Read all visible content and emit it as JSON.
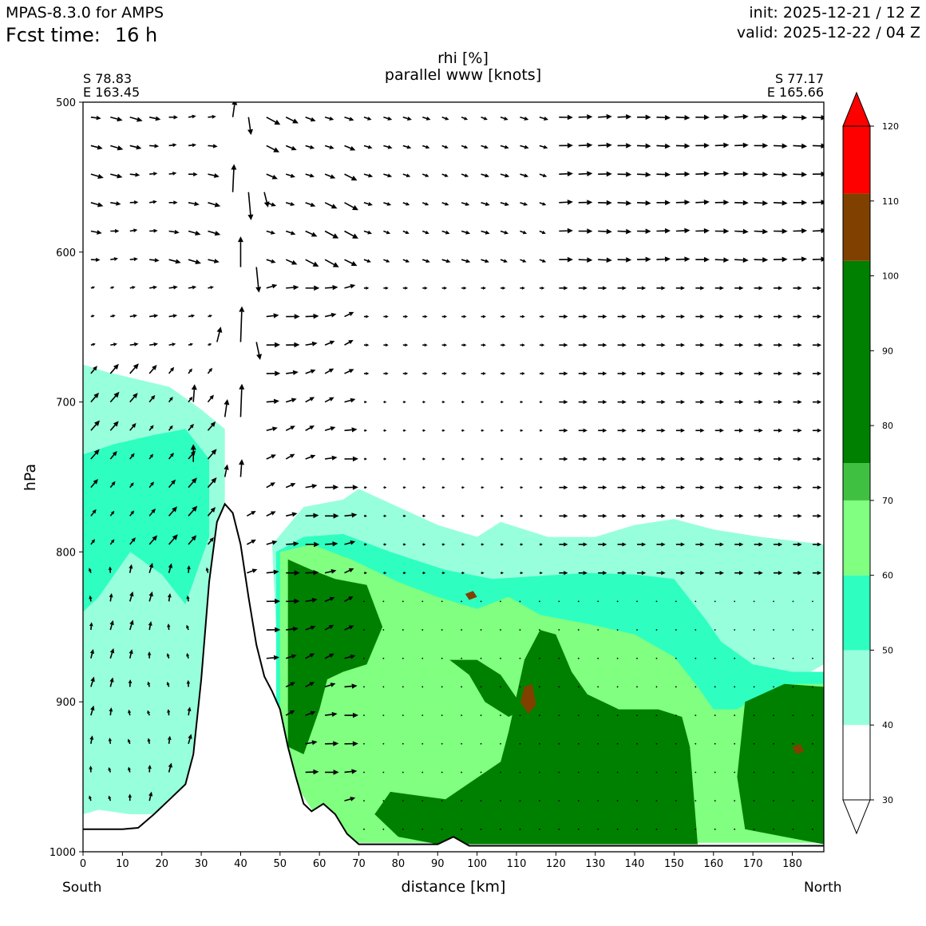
{
  "header": {
    "model": "MPAS-8.3.0 for AMPS",
    "fcst_label": "Fcst time:",
    "fcst_value": "16 h",
    "init": "init: 2025-12-21 / 12 Z",
    "valid": "valid: 2025-12-22 / 04 Z"
  },
  "section": {
    "start_lat": "S 78.83",
    "start_lon": "E 163.45",
    "end_lat": "S 77.17",
    "end_lon": "E 165.66",
    "south": "South",
    "north": "North"
  },
  "chart_data": {
    "type": "contourf cross-section with wind vectors",
    "title": "rhi [%]",
    "subtitle": "parallel www [knots]",
    "xlabel": "distance [km]",
    "ylabel": "hPa",
    "xlim": [
      0,
      188
    ],
    "ylim": [
      1000,
      500
    ],
    "xticks": [
      0,
      10,
      20,
      30,
      40,
      50,
      60,
      70,
      80,
      90,
      100,
      110,
      120,
      130,
      140,
      150,
      160,
      170,
      180
    ],
    "yticks": [
      500,
      600,
      700,
      800,
      900,
      1000
    ],
    "colorbar": {
      "ticks": [
        30,
        40,
        50,
        60,
        70,
        80,
        90,
        100,
        110,
        120
      ],
      "bins": [
        {
          "from": 30,
          "to": 40,
          "color": "#ffffff"
        },
        {
          "from": 40,
          "to": 50,
          "color": "#98ffdc"
        },
        {
          "from": 50,
          "to": 60,
          "color": "#2effc0"
        },
        {
          "from": 60,
          "to": 70,
          "color": "#80ff80"
        },
        {
          "from": 70,
          "to": 75,
          "color": "#40c040"
        },
        {
          "from": 75,
          "to": 102,
          "color": "#008000"
        },
        {
          "from": 102,
          "to": 111,
          "color": "#804000"
        },
        {
          "from": 111,
          "to": 120,
          "color": "#ff0000"
        }
      ]
    },
    "terrain": [
      [
        0,
        985
      ],
      [
        10,
        985
      ],
      [
        14,
        984
      ],
      [
        18,
        975
      ],
      [
        22,
        965
      ],
      [
        26,
        955
      ],
      [
        28,
        935
      ],
      [
        30,
        885
      ],
      [
        32,
        820
      ],
      [
        34,
        780
      ],
      [
        36,
        768
      ],
      [
        38,
        774
      ],
      [
        40,
        795
      ],
      [
        42,
        830
      ],
      [
        44,
        862
      ],
      [
        46,
        883
      ],
      [
        48,
        893
      ],
      [
        50,
        905
      ],
      [
        52,
        930
      ],
      [
        54,
        950
      ],
      [
        56,
        968
      ],
      [
        58,
        973
      ],
      [
        61,
        968
      ],
      [
        64,
        975
      ],
      [
        67,
        988
      ],
      [
        70,
        995
      ],
      [
        90,
        995
      ],
      [
        94,
        990
      ],
      [
        98,
        996
      ],
      [
        188,
        996
      ]
    ],
    "rhi_regions": [
      {
        "level": 40,
        "points": [
          [
            0,
            675
          ],
          [
            6,
            680
          ],
          [
            14,
            685
          ],
          [
            22,
            690
          ],
          [
            30,
            705
          ],
          [
            36,
            718
          ],
          [
            36,
            780
          ],
          [
            30,
            900
          ],
          [
            26,
            960
          ],
          [
            20,
            975
          ],
          [
            12,
            975
          ],
          [
            4,
            972
          ],
          [
            0,
            975
          ]
        ]
      },
      {
        "level": 40,
        "points": [
          [
            48,
            795
          ],
          [
            56,
            770
          ],
          [
            66,
            765
          ],
          [
            70,
            758
          ],
          [
            80,
            770
          ],
          [
            90,
            782
          ],
          [
            100,
            790
          ],
          [
            106,
            780
          ],
          [
            118,
            790
          ],
          [
            130,
            790
          ],
          [
            140,
            782
          ],
          [
            150,
            778
          ],
          [
            160,
            785
          ],
          [
            172,
            790
          ],
          [
            188,
            795
          ],
          [
            188,
            875
          ],
          [
            178,
            890
          ],
          [
            172,
            910
          ],
          [
            166,
            945
          ],
          [
            160,
            960
          ],
          [
            150,
            955
          ],
          [
            120,
            930
          ],
          [
            100,
            915
          ],
          [
            80,
            920
          ],
          [
            70,
            940
          ],
          [
            60,
            955
          ],
          [
            54,
            930
          ],
          [
            50,
            905
          ]
        ]
      },
      {
        "level": 50,
        "points": [
          [
            0,
            735
          ],
          [
            8,
            728
          ],
          [
            18,
            722
          ],
          [
            26,
            718
          ],
          [
            32,
            738
          ],
          [
            32,
            790
          ],
          [
            26,
            835
          ],
          [
            20,
            815
          ],
          [
            12,
            800
          ],
          [
            4,
            830
          ],
          [
            0,
            840
          ]
        ]
      },
      {
        "level": 50,
        "points": [
          [
            49,
            800
          ],
          [
            56,
            790
          ],
          [
            66,
            788
          ],
          [
            78,
            800
          ],
          [
            92,
            812
          ],
          [
            104,
            818
          ],
          [
            116,
            816
          ],
          [
            128,
            814
          ],
          [
            140,
            815
          ],
          [
            150,
            818
          ],
          [
            158,
            845
          ],
          [
            162,
            860
          ],
          [
            170,
            875
          ],
          [
            180,
            880
          ],
          [
            188,
            880
          ],
          [
            188,
            990
          ],
          [
            130,
            994
          ],
          [
            90,
            990
          ],
          [
            70,
            990
          ],
          [
            58,
            970
          ],
          [
            52,
            935
          ],
          [
            49,
            905
          ]
        ]
      },
      {
        "level": 60,
        "points": [
          [
            50,
            800
          ],
          [
            58,
            795
          ],
          [
            68,
            805
          ],
          [
            80,
            820
          ],
          [
            90,
            830
          ],
          [
            100,
            838
          ],
          [
            108,
            830
          ],
          [
            116,
            842
          ],
          [
            128,
            848
          ],
          [
            140,
            855
          ],
          [
            150,
            870
          ],
          [
            156,
            890
          ],
          [
            160,
            905
          ],
          [
            166,
            905
          ],
          [
            172,
            895
          ],
          [
            180,
            888
          ],
          [
            188,
            888
          ],
          [
            188,
            994
          ],
          [
            140,
            994
          ],
          [
            100,
            994
          ],
          [
            70,
            994
          ],
          [
            60,
            980
          ],
          [
            54,
            955
          ],
          [
            50,
            905
          ]
        ]
      },
      {
        "level": 80,
        "points": [
          [
            52,
            805
          ],
          [
            58,
            812
          ],
          [
            64,
            818
          ],
          [
            72,
            822
          ],
          [
            76,
            850
          ],
          [
            72,
            875
          ],
          [
            66,
            880
          ],
          [
            62,
            885
          ],
          [
            60,
            905
          ],
          [
            56,
            935
          ],
          [
            52,
            930
          ]
        ]
      },
      {
        "level": 80,
        "points": [
          [
            112,
            872
          ],
          [
            116,
            852
          ],
          [
            120,
            855
          ],
          [
            124,
            880
          ],
          [
            128,
            895
          ],
          [
            136,
            905
          ],
          [
            146,
            905
          ],
          [
            152,
            910
          ],
          [
            154,
            930
          ],
          [
            156,
            995
          ],
          [
            120,
            995
          ],
          [
            100,
            995
          ],
          [
            90,
            995
          ],
          [
            80,
            990
          ],
          [
            74,
            975
          ],
          [
            78,
            960
          ],
          [
            92,
            965
          ],
          [
            106,
            940
          ],
          [
            108,
            920
          ]
        ]
      },
      {
        "level": 80,
        "points": [
          [
            93,
            872
          ],
          [
            98,
            882
          ],
          [
            102,
            900
          ],
          [
            108,
            910
          ],
          [
            112,
            905
          ],
          [
            106,
            882
          ],
          [
            100,
            872
          ]
        ]
      },
      {
        "level": 80,
        "points": [
          [
            168,
            900
          ],
          [
            178,
            888
          ],
          [
            188,
            890
          ],
          [
            188,
            995
          ],
          [
            178,
            990
          ],
          [
            168,
            985
          ],
          [
            166,
            950
          ]
        ]
      },
      {
        "level": 105,
        "points": [
          [
            112,
            890
          ],
          [
            114,
            888
          ],
          [
            115,
            902
          ],
          [
            113,
            908
          ],
          [
            111,
            900
          ]
        ]
      },
      {
        "level": 105,
        "points": [
          [
            180,
            930
          ],
          [
            182,
            928
          ],
          [
            183,
            933
          ],
          [
            181,
            935
          ]
        ]
      },
      {
        "level": 105,
        "points": [
          [
            97,
            828
          ],
          [
            99,
            826
          ],
          [
            100,
            830
          ],
          [
            98,
            832
          ]
        ]
      }
    ],
    "jet_vectors": [
      {
        "x": 38,
        "p": 510,
        "u": 2,
        "w": -14
      },
      {
        "x": 42,
        "p": 510,
        "u": 2,
        "w": 14
      },
      {
        "x": 38,
        "p": 560,
        "u": 1,
        "w": -22
      },
      {
        "x": 42,
        "p": 560,
        "u": 2,
        "w": 22
      },
      {
        "x": 46,
        "p": 560,
        "u": 3,
        "w": 12
      },
      {
        "x": 40,
        "p": 610,
        "u": 0,
        "w": -24
      },
      {
        "x": 44,
        "p": 610,
        "u": 2,
        "w": 20
      },
      {
        "x": 40,
        "p": 660,
        "u": 1,
        "w": -28
      },
      {
        "x": 44,
        "p": 660,
        "u": 3,
        "w": 14
      },
      {
        "x": 34,
        "p": 660,
        "u": 3,
        "w": -12
      },
      {
        "x": 40,
        "p": 710,
        "u": 1,
        "w": -26
      },
      {
        "x": 36,
        "p": 710,
        "u": 2,
        "w": -14
      },
      {
        "x": 40,
        "p": 750,
        "u": 1,
        "w": -14
      },
      {
        "x": 36,
        "p": 750,
        "u": 2,
        "w": -10
      },
      {
        "x": 28,
        "p": 700,
        "u": 1,
        "w": -14
      },
      {
        "x": 28,
        "p": 740,
        "u": 0,
        "w": -14
      }
    ]
  }
}
